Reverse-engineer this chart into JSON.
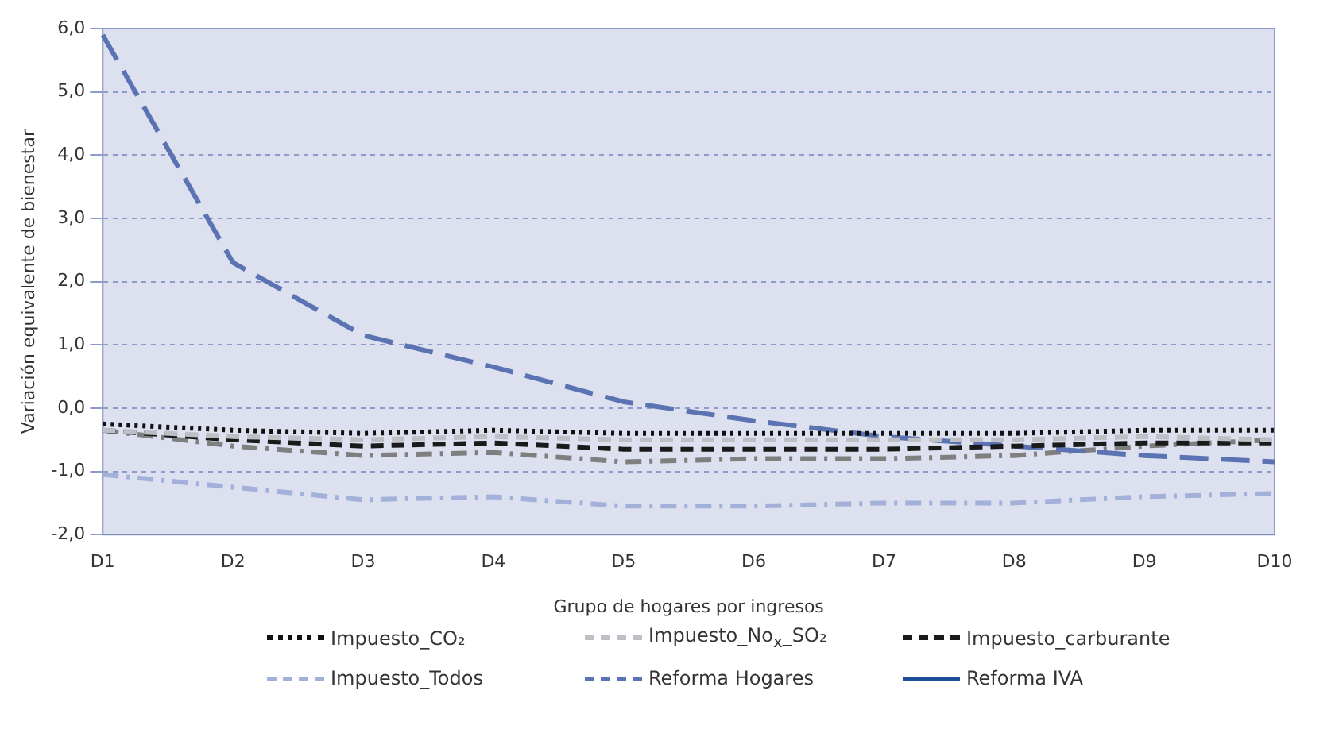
{
  "chart_data": {
    "type": "line",
    "xlabel": "Grupo de hogares por ingresos",
    "ylabel": "Variación equivalente de bienestar",
    "categories": [
      "D1",
      "D2",
      "D3",
      "D4",
      "D5",
      "D6",
      "D7",
      "D8",
      "D9",
      "D10"
    ],
    "ylim": [
      -2,
      6
    ],
    "yticks": [
      {
        "value": -2,
        "label": "-2,0"
      },
      {
        "value": -1,
        "label": "-1,0"
      },
      {
        "value": 0,
        "label": "0,0"
      },
      {
        "value": 1,
        "label": "1,0"
      },
      {
        "value": 2,
        "label": "2,0"
      },
      {
        "value": 3,
        "label": "3,0"
      },
      {
        "value": 4,
        "label": "4,0"
      },
      {
        "value": 5,
        "label": "5,0"
      },
      {
        "value": 6,
        "label": "6,0"
      }
    ],
    "grid": "y",
    "legend": "bottom",
    "marker": "none",
    "series": [
      {
        "name": "Impuesto_CO₂",
        "color": "#111111",
        "line_style": "dotted",
        "values": [
          -0.25,
          -0.35,
          -0.4,
          -0.35,
          -0.4,
          -0.4,
          -0.4,
          -0.4,
          -0.35,
          -0.35
        ]
      },
      {
        "name": "Impuesto_No$_{x}$_SO₂",
        "color": "#bdbfc4",
        "line_style": "dashed",
        "values": [
          -0.35,
          -0.45,
          -0.5,
          -0.45,
          -0.5,
          -0.5,
          -0.5,
          -0.5,
          -0.45,
          -0.5
        ]
      },
      {
        "name": "Impuesto_carburante",
        "color": "#1a1a1a",
        "line_style": "dashed",
        "values": [
          -0.35,
          -0.5,
          -0.6,
          -0.55,
          -0.65,
          -0.65,
          -0.65,
          -0.6,
          -0.55,
          -0.55
        ]
      },
      {
        "name": "Impuesto_Todos",
        "color": "#a3b1da",
        "line_style": "dashdot",
        "values": [
          -1.05,
          -1.25,
          -1.45,
          -1.4,
          -1.55,
          -1.55,
          -1.5,
          -1.5,
          -1.4,
          -1.35
        ]
      },
      {
        "name": "Reforma Hogares",
        "color": "#5b73b3",
        "line_style": "longdash",
        "values": [
          5.9,
          2.3,
          1.15,
          0.65,
          0.1,
          -0.2,
          -0.45,
          -0.6,
          -0.75,
          -0.85
        ]
      },
      {
        "name": "Reforma IVA",
        "color": "#1f4e99",
        "line_style": "solid",
        "values": [
          null,
          null,
          null,
          null,
          null,
          null,
          null,
          null,
          null,
          null
        ]
      },
      {
        "color": "#7f7f7f",
        "line_style": "dashdot",
        "values": [
          -0.35,
          -0.6,
          -0.75,
          -0.7,
          -0.85,
          -0.8,
          -0.8,
          -0.75,
          -0.6,
          -0.5
        ]
      }
    ]
  }
}
